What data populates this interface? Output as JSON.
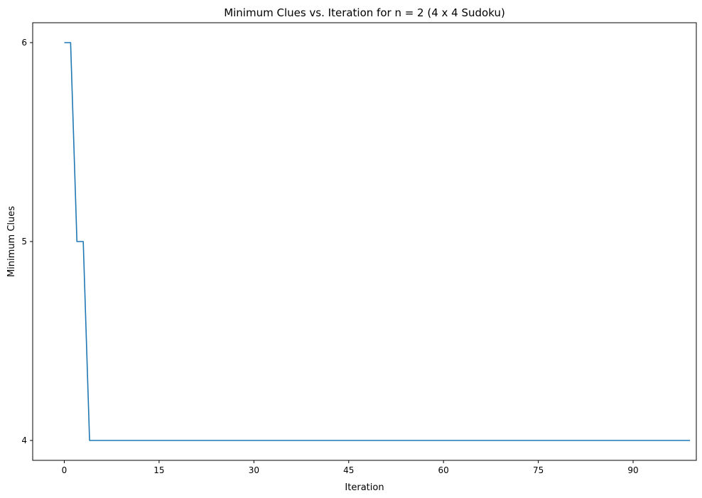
{
  "chart_data": {
    "type": "line",
    "title": "Minimum Clues vs. Iteration for n = 2 (4 x 4 Sudoku)",
    "xlabel": "Iteration",
    "ylabel": "Minimum Clues",
    "xlim": [
      -5,
      100
    ],
    "ylim": [
      3.9,
      6.1
    ],
    "xticks": [
      0,
      15,
      30,
      45,
      60,
      75,
      90
    ],
    "yticks": [
      4,
      5,
      6
    ],
    "grid": false,
    "series": [
      {
        "color": "#1f77b4",
        "points": [
          [
            0,
            6
          ],
          [
            1,
            6
          ],
          [
            2,
            5
          ],
          [
            3,
            5
          ],
          [
            4,
            4
          ],
          [
            99,
            4
          ]
        ]
      }
    ]
  }
}
